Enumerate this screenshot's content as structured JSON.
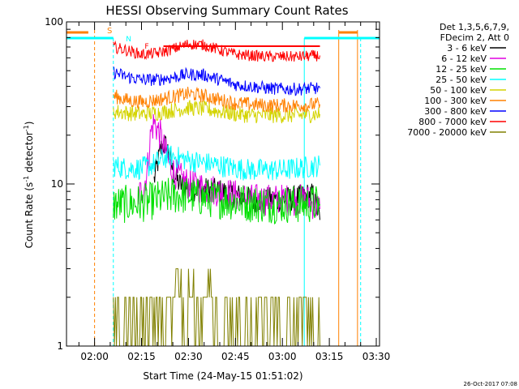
{
  "chart_data": {
    "type": "line",
    "title": "HESSI Observing Summary Count Rates",
    "xlabel": "Start Time (24-May-15 01:51:02)",
    "ylabel_main": "Count Rate (s",
    "ylabel_sup1": "-1",
    "ylabel_mid": " detector",
    "ylabel_sup2": "-1",
    "ylabel_end": ")",
    "footer": "26-Oct-2017 07:08",
    "yscale": "log",
    "ylim": [
      1,
      100
    ],
    "xlim": [
      "01:51:02",
      "03:31:02"
    ],
    "y_tick_labels": [
      "1",
      "10",
      "100"
    ],
    "x_tick_labels": [
      "02:00",
      "02:15",
      "02:30",
      "02:45",
      "03:00",
      "03:15",
      "03:30"
    ],
    "legend": {
      "placement": "right",
      "header_lines": [
        "Det 1,3,5,6,7,9,",
        "FDecim 2, Att 0"
      ],
      "entries": [
        {
          "label": "3 - 6 keV",
          "color": "#000000"
        },
        {
          "label": "6 - 12 keV",
          "color": "#e000e0"
        },
        {
          "label": "12 - 25 keV",
          "color": "#00e000"
        },
        {
          "label": "25 - 50 keV",
          "color": "#00ffff"
        },
        {
          "label": "50 - 100 keV",
          "color": "#d4d400"
        },
        {
          "label": "100 - 300 keV",
          "color": "#ff8000"
        },
        {
          "label": "300 - 800 keV",
          "color": "#0000ff"
        },
        {
          "label": "800 - 7000 keV",
          "color": "#ff0000"
        },
        {
          "label": "7000 - 20000 keV",
          "color": "#808000"
        }
      ]
    },
    "flags": {
      "saa_label": "S",
      "night_label": "N",
      "flare_label": "F",
      "saa_color": "#ff8000",
      "night_color": "#00ffff",
      "flare_color": "#ff0000"
    },
    "series": [
      {
        "name": "3 - 6 keV",
        "color": "#000000",
        "noise": 0.08,
        "x": [
          "02:19",
          "02:20",
          "02:21",
          "02:22",
          "02:23",
          "02:24",
          "02:25",
          "02:27",
          "02:30",
          "02:35",
          "02:40",
          "02:45",
          "02:50",
          "02:55",
          "03:00",
          "03:05",
          "03:08",
          "03:10",
          "03:12"
        ],
        "y": [
          10.5,
          13,
          16,
          17.5,
          17,
          15,
          12,
          10,
          9.5,
          9.2,
          9,
          8.5,
          8,
          8,
          8,
          8.2,
          8.5,
          8.5,
          6
        ]
      },
      {
        "name": "6 - 12 keV",
        "color": "#e000e0",
        "noise": 0.1,
        "x": [
          "02:14",
          "02:15",
          "02:16",
          "02:17",
          "02:18",
          "02:19",
          "02:20",
          "02:21",
          "02:22",
          "02:23",
          "02:24",
          "02:25",
          "02:27",
          "02:30",
          "02:35",
          "02:40",
          "02:45",
          "02:50",
          "02:55",
          "03:00",
          "03:05",
          "03:08",
          "03:12"
        ],
        "y": [
          8.5,
          9,
          10,
          13,
          21,
          24,
          22,
          20,
          17,
          15,
          13,
          12,
          11,
          10,
          9.5,
          9,
          8.5,
          8,
          8,
          8,
          8,
          8,
          7
        ]
      },
      {
        "name": "12 - 25 keV",
        "color": "#00e000",
        "noise": 0.12,
        "x": [
          "02:06",
          "02:10",
          "02:15",
          "02:20",
          "02:25",
          "02:30",
          "02:35",
          "02:40",
          "02:45",
          "02:50",
          "02:55",
          "03:00",
          "03:05",
          "03:12"
        ],
        "y": [
          7.5,
          7.5,
          7.6,
          8,
          8.5,
          8.5,
          8.2,
          8,
          7.8,
          7.6,
          7.5,
          7.5,
          7.5,
          7.5
        ]
      },
      {
        "name": "25 - 50 keV",
        "color": "#00ffff",
        "noise": 0.07,
        "x": [
          "02:06",
          "02:10",
          "02:15",
          "02:18",
          "02:21",
          "02:24",
          "02:27",
          "02:30",
          "02:35",
          "02:40",
          "02:45",
          "02:50",
          "02:55",
          "03:00",
          "03:05",
          "03:12"
        ],
        "y": [
          13,
          12.5,
          12.5,
          13,
          14,
          15,
          14.5,
          14,
          13.5,
          13,
          12.5,
          12.2,
          12.2,
          12.2,
          12.5,
          13
        ]
      },
      {
        "name": "50 - 100 keV",
        "color": "#d4d400",
        "noise": 0.05,
        "x": [
          "02:06",
          "02:10",
          "02:15",
          "02:20",
          "02:25",
          "02:30",
          "02:35",
          "02:40",
          "02:45",
          "02:50",
          "02:55",
          "03:00",
          "03:05",
          "03:12"
        ],
        "y": [
          28,
          27.5,
          27,
          27.5,
          28.5,
          29.5,
          29,
          28,
          27,
          26.5,
          26.5,
          26.5,
          26.5,
          27
        ]
      },
      {
        "name": "100 - 300 keV",
        "color": "#ff8000",
        "noise": 0.045,
        "x": [
          "02:06",
          "02:10",
          "02:15",
          "02:20",
          "02:25",
          "02:30",
          "02:35",
          "02:40",
          "02:45",
          "02:50",
          "02:55",
          "03:00",
          "03:05",
          "03:12"
        ],
        "y": [
          35,
          33,
          32,
          33,
          34.5,
          36,
          35,
          33,
          31.5,
          31,
          30.5,
          30.5,
          30.5,
          31
        ]
      },
      {
        "name": "300 - 800 keV",
        "color": "#0000ff",
        "noise": 0.04,
        "x": [
          "02:06",
          "02:10",
          "02:15",
          "02:20",
          "02:25",
          "02:30",
          "02:35",
          "02:40",
          "02:45",
          "02:50",
          "02:55",
          "03:00",
          "03:05",
          "03:12"
        ],
        "y": [
          49,
          46,
          44,
          44,
          45.5,
          47.5,
          47,
          44,
          41,
          40,
          39,
          38.5,
          38.5,
          39
        ]
      },
      {
        "name": "800 - 7000 keV",
        "color": "#ff0000",
        "noise": 0.035,
        "x": [
          "02:06",
          "02:10",
          "02:15",
          "02:20",
          "02:25",
          "02:30",
          "02:35",
          "02:40",
          "02:45",
          "02:50",
          "02:55",
          "03:00",
          "03:05",
          "03:12"
        ],
        "y": [
          70,
          67,
          63,
          64,
          68,
          73,
          72,
          67,
          63,
          62,
          61,
          61,
          61,
          62
        ]
      },
      {
        "name": "7000 - 20000 keV",
        "color": "#808000",
        "step": true,
        "x": [
          "02:06",
          "02:08",
          "02:10",
          "02:12",
          "02:15",
          "02:18",
          "02:20",
          "02:22",
          "02:24",
          "02:26",
          "02:28",
          "02:30",
          "02:32",
          "02:34",
          "02:36",
          "02:38",
          "02:40",
          "02:42",
          "02:44",
          "02:46",
          "02:48",
          "02:50",
          "02:52",
          "02:54",
          "02:56",
          "02:58",
          "03:00",
          "03:02",
          "03:04",
          "03:06",
          "03:08",
          "03:10",
          "03:12"
        ],
        "y": [
          1,
          2,
          1,
          2,
          1,
          2,
          1,
          2,
          2,
          3,
          2,
          3,
          2,
          2,
          3,
          2,
          1,
          2,
          1,
          2,
          1,
          2,
          1,
          2,
          1,
          2,
          1,
          2,
          1,
          2,
          1,
          2,
          1
        ]
      }
    ],
    "markers": {
      "saa_lines": [
        "02:00",
        "03:18",
        "03:24"
      ],
      "night_lines": [
        "02:06",
        "03:07",
        "03:25"
      ],
      "saa_bars": [
        [
          "01:51:02",
          "01:58"
        ],
        [
          "03:18",
          "03:24"
        ]
      ],
      "night_bars": [
        [
          "01:51:02",
          "02:06"
        ],
        [
          "03:07",
          "03:31:02"
        ]
      ],
      "flare_bar": [
        "02:22",
        "03:12"
      ]
    }
  }
}
